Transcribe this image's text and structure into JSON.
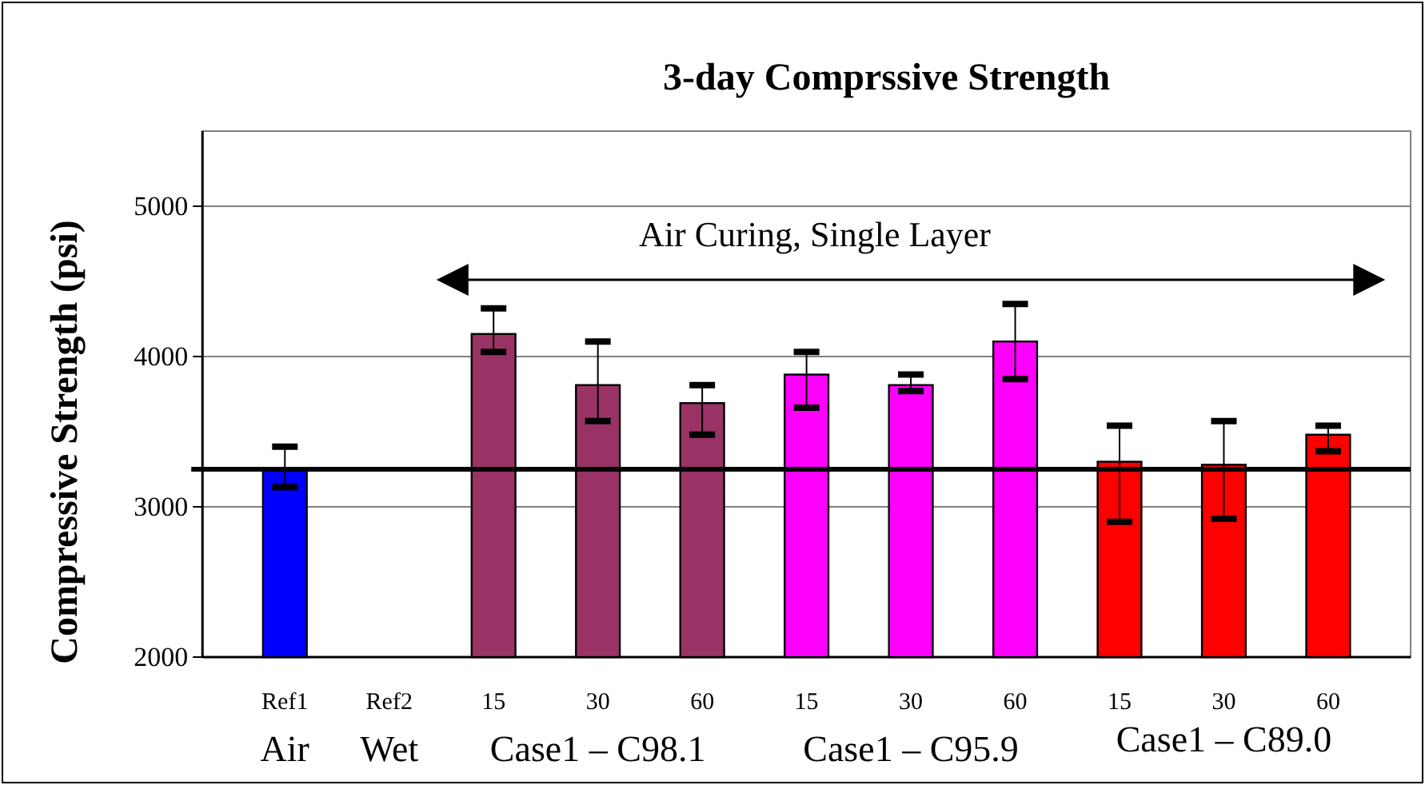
{
  "chart_data": {
    "type": "bar",
    "title": "3-day Comprssive Strength",
    "ylabel": "Compressive Strength (psi)",
    "categories": [
      "Ref1",
      "Ref2",
      "15",
      "30",
      "60",
      "15",
      "30",
      "60",
      "15",
      "30",
      "60"
    ],
    "values": [
      3250,
      null,
      4150,
      3810,
      3690,
      3880,
      3810,
      4100,
      3300,
      3280,
      3480
    ],
    "errors": [
      [
        3130,
        3400
      ],
      null,
      [
        4030,
        4320
      ],
      [
        3570,
        4100
      ],
      [
        3480,
        3810
      ],
      [
        3660,
        4030
      ],
      [
        3770,
        3880
      ],
      [
        3850,
        4350
      ],
      [
        2900,
        3540
      ],
      [
        2920,
        3570
      ],
      [
        3370,
        3540
      ]
    ],
    "colors": [
      "#0000ff",
      null,
      "#993366",
      "#993366",
      "#993366",
      "#ff00ff",
      "#ff00ff",
      "#ff00ff",
      "#ff0000",
      "#ff0000",
      "#ff0000"
    ],
    "ylim": [
      2000,
      5500
    ],
    "yticks": [
      2000,
      3000,
      4000,
      5000
    ],
    "grid": "y",
    "ref_lines": [
      {
        "axis": "y",
        "value": 3250,
        "color": "#000000"
      }
    ],
    "annotations": [
      "Air Curing, Single Layer",
      "Air",
      "Wet",
      "Case1 – C98.1",
      "Case1 – C95.9",
      "Case1 – C89.0"
    ]
  }
}
